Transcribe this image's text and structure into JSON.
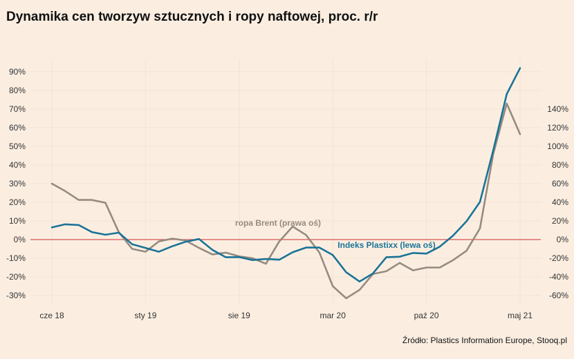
{
  "title": "Dynamika cen tworzyw sztucznych i ropy naftowej, proc. r/r",
  "source": "Źródło: Plastics Information Europe, Stooq.pl",
  "colors": {
    "background": "#fbeee1",
    "plastixx": "#1a7397",
    "brent": "#958b80",
    "zero_line": "#d9534f"
  },
  "chart_data": {
    "type": "line",
    "title": "Dynamika cen tworzyw sztucznych i ropy naftowej, proc. r/r",
    "x": [
      "2018-06",
      "2018-07",
      "2018-08",
      "2018-09",
      "2018-10",
      "2018-11",
      "2018-12",
      "2019-01",
      "2019-02",
      "2019-03",
      "2019-04",
      "2019-05",
      "2019-06",
      "2019-07",
      "2019-08",
      "2019-09",
      "2019-10",
      "2019-11",
      "2019-12",
      "2020-01",
      "2020-02",
      "2020-03",
      "2020-04",
      "2020-05",
      "2020-06",
      "2020-07",
      "2020-08",
      "2020-09",
      "2020-10",
      "2020-11",
      "2020-12",
      "2021-01",
      "2021-02",
      "2021-03",
      "2021-04",
      "2021-05"
    ],
    "x_ticks": [
      {
        "x": "2018-06",
        "label": "cze 18"
      },
      {
        "x": "2019-01",
        "label": "sty 19"
      },
      {
        "x": "2019-08",
        "label": "sie 19"
      },
      {
        "x": "2020-03",
        "label": "mar 20"
      },
      {
        "x": "2020-10",
        "label": "paź 20"
      },
      {
        "x": "2021-05",
        "label": "maj 21"
      }
    ],
    "left_axis": {
      "ylim": [
        -35,
        95
      ],
      "ticks": [
        -30,
        -20,
        -10,
        0,
        10,
        20,
        30,
        40,
        50,
        60,
        70,
        80,
        90
      ],
      "tick_labels": [
        "-30%",
        "-20%",
        "-10%",
        "0%",
        "10%",
        "20%",
        "30%",
        "40%",
        "50%",
        "60%",
        "70%",
        "80%",
        "90%"
      ]
    },
    "right_axis": {
      "ylim": [
        -70,
        190
      ],
      "ticks": [
        -60,
        -40,
        -20,
        0,
        20,
        40,
        60,
        80,
        100,
        120,
        140
      ],
      "tick_labels": [
        "-60%",
        "-40%",
        "-20%",
        "0%",
        "20%",
        "40%",
        "60%",
        "80%",
        "100%",
        "120%",
        "140%"
      ]
    },
    "series": [
      {
        "name": "Indeks Plastixx (lewa oś)",
        "axis": "left",
        "color": "#1a7397",
        "values": [
          6.5,
          8.2,
          7.8,
          4,
          2.6,
          3.7,
          -2.5,
          -4.5,
          -6.5,
          -3.6,
          -1.2,
          0.3,
          -5.5,
          -9.5,
          -9.4,
          -11,
          -10.4,
          -10.8,
          -6.8,
          -4.3,
          -4.3,
          -8.3,
          -17.5,
          -22.5,
          -18.2,
          -9.5,
          -9.2,
          -7.2,
          -7.5,
          -3.8,
          2.2,
          9.8,
          20.2,
          48,
          78,
          92
        ]
      },
      {
        "name": "ropa Brent (prawa oś)",
        "axis": "right",
        "color": "#958b80",
        "values": [
          60,
          52,
          42.5,
          42.5,
          39.5,
          8,
          -10,
          -13,
          -2,
          1,
          -1,
          -9,
          -16,
          -14,
          -18,
          -20,
          -26,
          -2,
          14,
          5,
          -14,
          -50,
          -63,
          -54,
          -37,
          -34,
          -25,
          -33,
          -30,
          -30,
          -22,
          -12,
          12,
          92,
          146,
          113
        ]
      }
    ],
    "annotations": [
      {
        "text": "ropa Brent (prawa oś)",
        "series": "ropa Brent (prawa oś)"
      },
      {
        "text": "Indeks Plastixx (lewa oś)",
        "series": "Indeks Plastixx (lewa oś)"
      }
    ],
    "zero_line": true,
    "grid": true,
    "legend": "none"
  }
}
